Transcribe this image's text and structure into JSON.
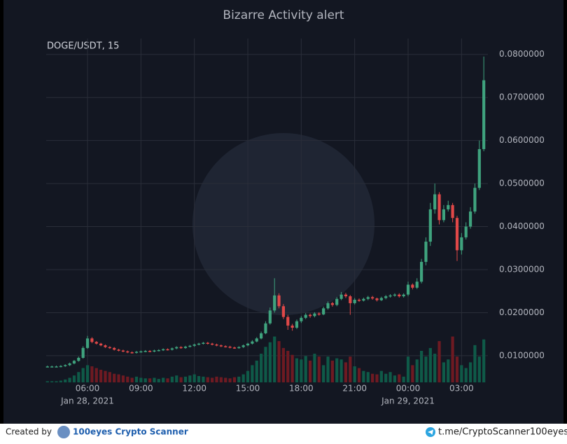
{
  "chart_data": {
    "type": "candlestick",
    "title": "Bizarre Activity alert",
    "subtitle": "DOGE/USDT, 15",
    "x": [
      3.75,
      4,
      4.25,
      4.5,
      4.75,
      5,
      5.25,
      5.5,
      5.75,
      6,
      6.25,
      6.5,
      6.75,
      7,
      7.25,
      7.5,
      7.75,
      8,
      8.25,
      8.5,
      8.75,
      9,
      9.25,
      9.5,
      9.75,
      10,
      10.25,
      10.5,
      10.75,
      11,
      11.25,
      11.5,
      11.75,
      12,
      12.25,
      12.5,
      12.75,
      13,
      13.25,
      13.5,
      13.75,
      14,
      14.25,
      14.5,
      14.75,
      15,
      15.25,
      15.5,
      15.75,
      16,
      16.25,
      16.5,
      16.75,
      17,
      17.25,
      17.5,
      17.75,
      18,
      18.25,
      18.5,
      18.75,
      19,
      19.25,
      19.5,
      19.75,
      20,
      20.25,
      20.5,
      20.75,
      21,
      21.25,
      21.5,
      21.75,
      22,
      22.25,
      22.5,
      22.75,
      23,
      23.25,
      23.5,
      23.75,
      24,
      24.25,
      24.5,
      24.75,
      25,
      25.25,
      25.5,
      25.75,
      26,
      26.25,
      26.5,
      26.75,
      27,
      27.25,
      27.5,
      27.75,
      28,
      28.25
    ],
    "open": [
      0.0075,
      0.0075,
      0.0075,
      0.0075,
      0.0076,
      0.0078,
      0.0082,
      0.0088,
      0.0095,
      0.0118,
      0.014,
      0.0132,
      0.0128,
      0.0124,
      0.012,
      0.0118,
      0.0114,
      0.0112,
      0.011,
      0.0108,
      0.0107,
      0.0109,
      0.011,
      0.0111,
      0.011,
      0.0112,
      0.0113,
      0.0115,
      0.0114,
      0.0117,
      0.012,
      0.0118,
      0.0121,
      0.0123,
      0.0126,
      0.0128,
      0.013,
      0.0128,
      0.0126,
      0.0124,
      0.0122,
      0.0121,
      0.0119,
      0.0118,
      0.012,
      0.0124,
      0.0128,
      0.0133,
      0.014,
      0.0152,
      0.0175,
      0.0205,
      0.024,
      0.0215,
      0.019,
      0.017,
      0.0165,
      0.018,
      0.0188,
      0.0195,
      0.0192,
      0.0198,
      0.0196,
      0.021,
      0.0222,
      0.0218,
      0.0232,
      0.0242,
      0.0238,
      0.0222,
      0.023,
      0.0228,
      0.0232,
      0.0236,
      0.0233,
      0.0229,
      0.0234,
      0.0238,
      0.024,
      0.0242,
      0.0238,
      0.0242,
      0.0265,
      0.0258,
      0.0272,
      0.0318,
      0.0365,
      0.044,
      0.0475,
      0.0415,
      0.044,
      0.045,
      0.042,
      0.0345,
      0.0375,
      0.04,
      0.0435,
      0.049,
      0.058
    ],
    "high": [
      0.0077,
      0.0077,
      0.0077,
      0.0078,
      0.008,
      0.0084,
      0.009,
      0.0098,
      0.0122,
      0.0146,
      0.0143,
      0.0134,
      0.013,
      0.0126,
      0.0122,
      0.012,
      0.0116,
      0.0114,
      0.0112,
      0.011,
      0.0111,
      0.0112,
      0.0113,
      0.0113,
      0.0114,
      0.0115,
      0.0117,
      0.0117,
      0.0119,
      0.0122,
      0.0122,
      0.0123,
      0.0125,
      0.0128,
      0.013,
      0.0132,
      0.0132,
      0.013,
      0.0128,
      0.0126,
      0.0124,
      0.0123,
      0.0121,
      0.0122,
      0.0126,
      0.013,
      0.0136,
      0.0143,
      0.0156,
      0.018,
      0.0212,
      0.028,
      0.0245,
      0.022,
      0.0195,
      0.0174,
      0.0184,
      0.0192,
      0.0199,
      0.0198,
      0.0201,
      0.0201,
      0.0214,
      0.0226,
      0.0225,
      0.0236,
      0.0248,
      0.0246,
      0.0241,
      0.0234,
      0.0233,
      0.0235,
      0.0239,
      0.0239,
      0.0235,
      0.0237,
      0.0241,
      0.0243,
      0.0245,
      0.0245,
      0.0245,
      0.0272,
      0.0268,
      0.028,
      0.0325,
      0.0375,
      0.0455,
      0.05,
      0.048,
      0.045,
      0.046,
      0.0455,
      0.0425,
      0.0385,
      0.041,
      0.0445,
      0.05,
      0.06,
      0.0795
    ],
    "low": [
      0.0073,
      0.0073,
      0.0073,
      0.0073,
      0.0074,
      0.0076,
      0.008,
      0.0086,
      0.0093,
      0.0116,
      0.0129,
      0.0126,
      0.0122,
      0.0118,
      0.0116,
      0.0112,
      0.011,
      0.0108,
      0.0106,
      0.0105,
      0.0105,
      0.0107,
      0.0108,
      0.0108,
      0.0108,
      0.011,
      0.0111,
      0.0112,
      0.0112,
      0.0115,
      0.0116,
      0.0116,
      0.0119,
      0.0121,
      0.0124,
      0.0126,
      0.0126,
      0.0124,
      0.0122,
      0.012,
      0.0119,
      0.0117,
      0.0116,
      0.0116,
      0.0118,
      0.0122,
      0.0126,
      0.0131,
      0.0138,
      0.015,
      0.0172,
      0.02,
      0.021,
      0.0185,
      0.016,
      0.0158,
      0.0162,
      0.0176,
      0.0185,
      0.0188,
      0.0189,
      0.0193,
      0.0194,
      0.0207,
      0.0214,
      0.0215,
      0.0229,
      0.0234,
      0.0195,
      0.0219,
      0.0225,
      0.0226,
      0.0229,
      0.023,
      0.0226,
      0.0227,
      0.0231,
      0.0235,
      0.0237,
      0.0235,
      0.0235,
      0.0238,
      0.0254,
      0.0255,
      0.0268,
      0.031,
      0.0355,
      0.043,
      0.0405,
      0.041,
      0.0435,
      0.041,
      0.032,
      0.0335,
      0.037,
      0.0395,
      0.043,
      0.0485,
      0.0575
    ],
    "close": [
      0.0075,
      0.0075,
      0.0075,
      0.0076,
      0.0078,
      0.0082,
      0.0088,
      0.0095,
      0.0118,
      0.014,
      0.0132,
      0.0128,
      0.0124,
      0.012,
      0.0118,
      0.0114,
      0.0112,
      0.011,
      0.0108,
      0.0107,
      0.0109,
      0.011,
      0.0111,
      0.011,
      0.0112,
      0.0113,
      0.0115,
      0.0114,
      0.0117,
      0.012,
      0.0118,
      0.0121,
      0.0123,
      0.0126,
      0.0128,
      0.013,
      0.0128,
      0.0126,
      0.0124,
      0.0122,
      0.0121,
      0.0119,
      0.0118,
      0.012,
      0.0124,
      0.0128,
      0.0133,
      0.014,
      0.0152,
      0.0175,
      0.0205,
      0.024,
      0.0215,
      0.019,
      0.017,
      0.0165,
      0.018,
      0.0188,
      0.0195,
      0.0192,
      0.0198,
      0.0196,
      0.021,
      0.0222,
      0.0218,
      0.0232,
      0.0242,
      0.0238,
      0.0222,
      0.023,
      0.0228,
      0.0232,
      0.0236,
      0.0233,
      0.0229,
      0.0234,
      0.0238,
      0.024,
      0.0242,
      0.0238,
      0.0242,
      0.0265,
      0.0258,
      0.0272,
      0.0318,
      0.0365,
      0.044,
      0.0475,
      0.0415,
      0.044,
      0.045,
      0.042,
      0.0345,
      0.0375,
      0.04,
      0.0435,
      0.049,
      0.058,
      0.074
    ],
    "volume": [
      2,
      2,
      2,
      3,
      5,
      8,
      12,
      18,
      25,
      30,
      28,
      25,
      22,
      20,
      18,
      15,
      14,
      12,
      10,
      8,
      10,
      8,
      7,
      7,
      8,
      6,
      8,
      7,
      10,
      12,
      9,
      10,
      12,
      14,
      11,
      10,
      9,
      8,
      10,
      9,
      8,
      7,
      9,
      10,
      14,
      20,
      30,
      38,
      50,
      62,
      70,
      80,
      72,
      60,
      55,
      48,
      42,
      40,
      46,
      38,
      50,
      45,
      30,
      45,
      38,
      42,
      40,
      35,
      45,
      28,
      25,
      20,
      18,
      15,
      14,
      20,
      15,
      18,
      12,
      14,
      10,
      45,
      30,
      40,
      55,
      45,
      60,
      50,
      72,
      35,
      40,
      80,
      45,
      30,
      25,
      35,
      65,
      45,
      75
    ],
    "volume_lim": [
      0,
      110
    ],
    "up_color": "#3fa37e",
    "down_color": "#e04848",
    "up_volume_color": "#0f5a48",
    "down_volume_color": "#6e1a22",
    "xlim": [
      3.68,
      28.48
    ],
    "xticks": [
      {
        "value": 6,
        "label": "06:00"
      },
      {
        "value": 9,
        "label": "09:00"
      },
      {
        "value": 12,
        "label": "12:00"
      },
      {
        "value": 15,
        "label": "15:00"
      },
      {
        "value": 18,
        "label": "18:00"
      },
      {
        "value": 21,
        "label": "21:00"
      },
      {
        "value": 24,
        "label": "00:00"
      },
      {
        "value": 27,
        "label": "03:00"
      }
    ],
    "date_labels": [
      {
        "value": 6,
        "label": "Jan 28, 2021"
      },
      {
        "value": 24,
        "label": "Jan 29, 2021"
      }
    ],
    "ylim": [
      0.0038,
      0.0837
    ],
    "yticks": [
      {
        "value": 0.01,
        "label": "0.0100000"
      },
      {
        "value": 0.02,
        "label": "0.0200000"
      },
      {
        "value": 0.03,
        "label": "0.0300000"
      },
      {
        "value": 0.04,
        "label": "0.0400000"
      },
      {
        "value": 0.05,
        "label": "0.0500000"
      },
      {
        "value": 0.06,
        "label": "0.0600000"
      },
      {
        "value": 0.07,
        "label": "0.0700000"
      },
      {
        "value": 0.08,
        "label": "0.0800000"
      }
    ],
    "grid": true
  },
  "footer": {
    "created_by": "Created by",
    "brand": "100eyes Crypto Scanner",
    "link": "t.me/CryptoScanner100eyes"
  }
}
